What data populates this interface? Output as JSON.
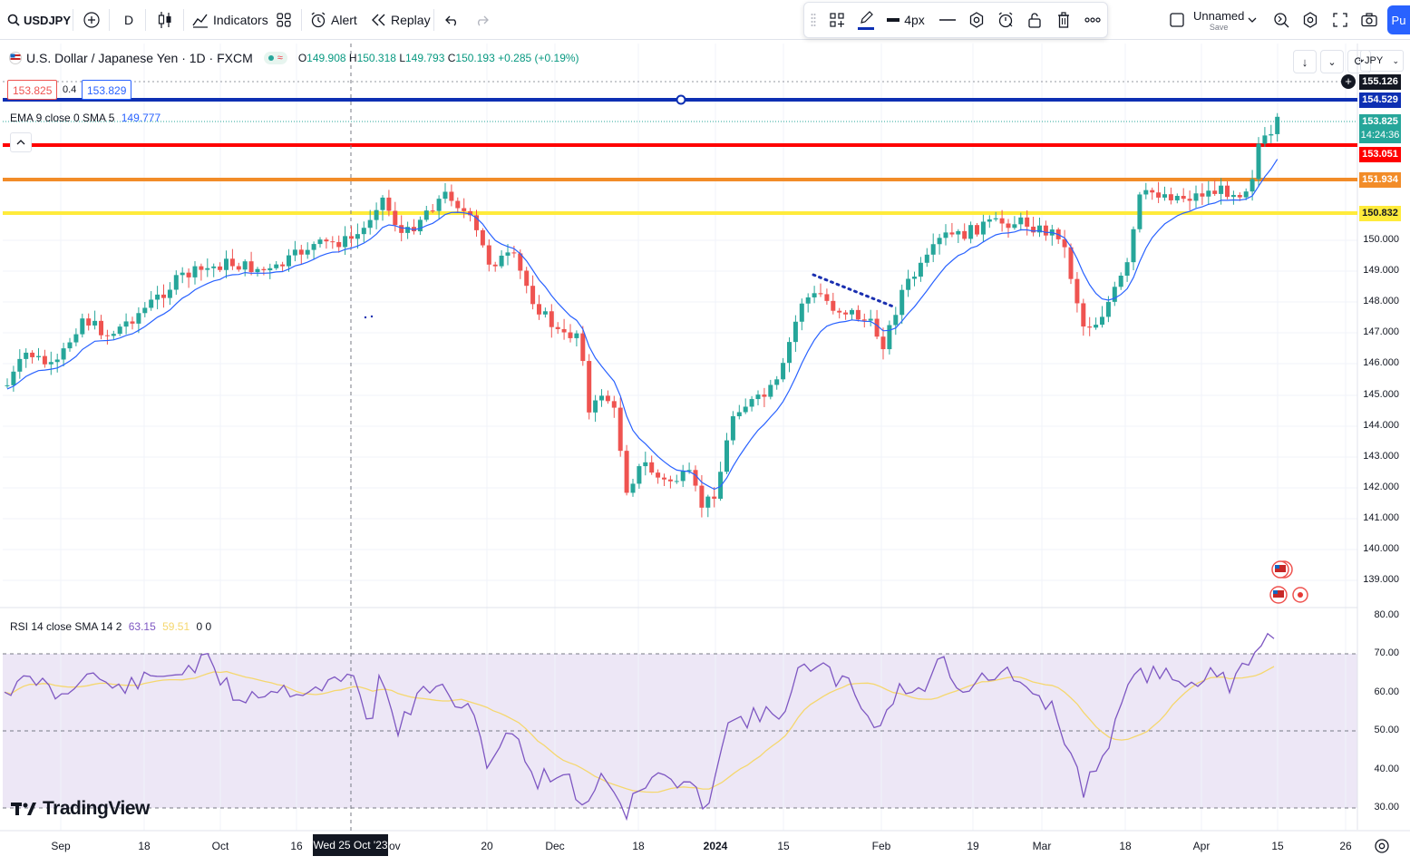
{
  "colors": {
    "up": "#26a69a",
    "down": "#ef5350",
    "ema": "#2962ff",
    "blue_line": "#0d2fb3",
    "red_line": "#ff0000",
    "orange_line": "#f28c28",
    "yellow_line": "#ffeb3b",
    "rsi": "#7e57c2",
    "rsi_sma": "#f5d76e",
    "rsi_band": "#ede7f6"
  },
  "toolbar": {
    "symbol": "USDJPY",
    "interval": "D",
    "indicators_label": "Indicators",
    "alert_label": "Alert",
    "replay_label": "Replay",
    "layout_name": "Unnamed",
    "layout_save": "Save",
    "publish_label": "Pu"
  },
  "drawing_toolbar": {
    "width_label": "4px"
  },
  "legend": {
    "title": "U.S. Dollar / Japanese Yen · 1D · FXCM",
    "o_label": "O",
    "o_value": "149.908",
    "h_label": "H",
    "h_value": "150.318",
    "l_label": "L",
    "l_value": "149.793",
    "c_label": "C",
    "c_value": "150.193",
    "change": "+0.285 (+0.19%)",
    "sell_price": "153.825",
    "spread": "0.4",
    "buy_price": "153.829",
    "ema_label": "EMA 9 close 0 SMA 5",
    "ema_value": "149.777",
    "rsi_label": "RSI 14 close SMA 14 2",
    "rsi_value": "63.15",
    "rsi_sma_value": "59.51",
    "rsi_extra": "0  0"
  },
  "currency": "JPY",
  "price_axis": [
    "150.000",
    "149.000",
    "148.000",
    "147.000",
    "146.000",
    "145.000",
    "144.000",
    "143.000",
    "142.000",
    "141.000",
    "140.000",
    "139.000"
  ],
  "price_tags": {
    "top": "155.126",
    "blue": "154.529",
    "current": "153.825",
    "countdown": "14:24:36",
    "red": "153.051",
    "orange": "151.934",
    "yellow": "150.832"
  },
  "rsi_axis": [
    "80.00",
    "70.00",
    "60.00",
    "50.00",
    "40.00",
    "30.00"
  ],
  "time_axis": [
    "Sep",
    "18",
    "Oct",
    "16",
    "20",
    "Dec",
    "18",
    "2024",
    "15",
    "Feb",
    "19",
    "Mar",
    "18",
    "Apr",
    "15",
    "26"
  ],
  "crosshair_date": "Wed 25 Oct '23",
  "crosshair_partial": "ov",
  "watermark": "TradingView",
  "chart_data": {
    "type": "candlestick",
    "symbol": "USDJPY",
    "horizontal_lines": [
      154.529,
      153.051,
      151.934,
      150.832
    ],
    "ema_last": 149.777,
    "current_price": 153.825,
    "rsi": {
      "period": 14,
      "last": 63.15,
      "sma_last": 59.51,
      "upper_band": 70,
      "lower_band": 30,
      "mid_band": 50
    }
  }
}
